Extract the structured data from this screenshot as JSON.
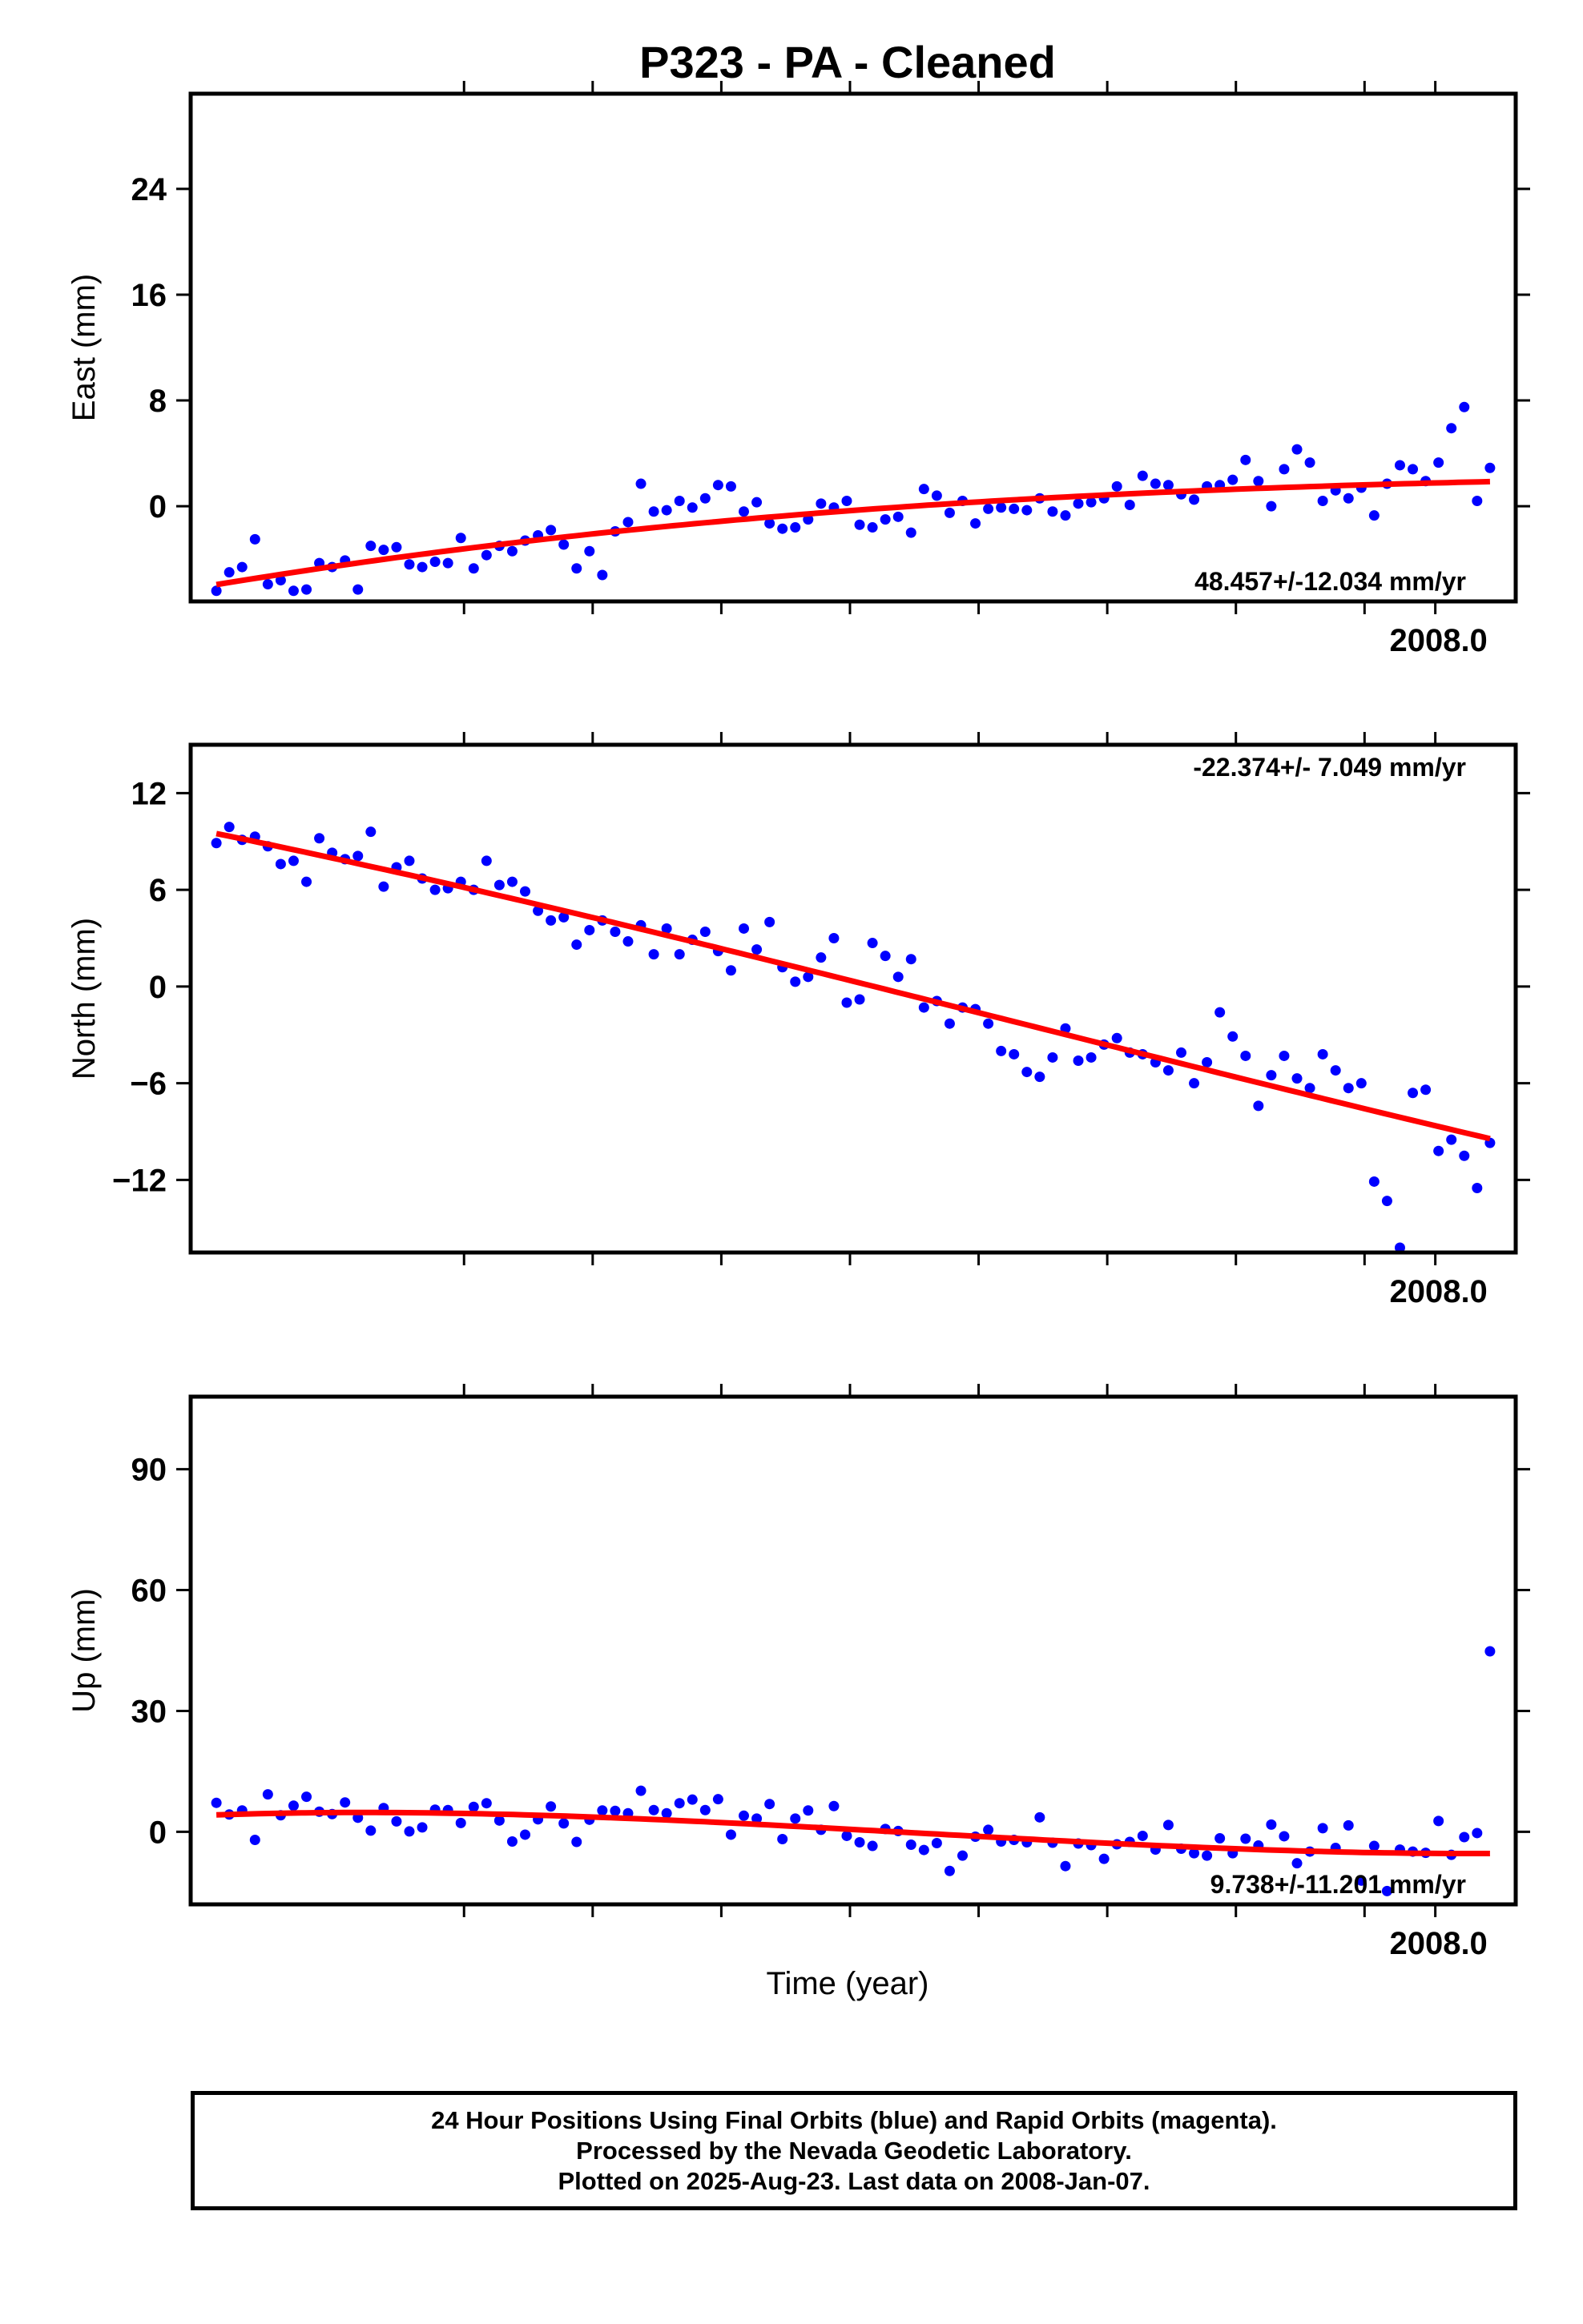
{
  "title": "P323  - PA - Cleaned",
  "xlabel": "Time (year)",
  "footer": [
    "24 Hour Positions Using Final Orbits (blue) and Rapid Orbits (magenta).",
    "Processed by the Nevada Geodetic Laboratory.",
    "Plotted on 2025-Aug-23. Last data on 2008-Jan-07."
  ],
  "colors": {
    "points": "#0000ff",
    "fit": "#ff0000",
    "axes": "#000000"
  },
  "chart_data": [
    {
      "type": "scatter",
      "panel": "east",
      "ylabel": "East (mm)",
      "rate_label": "48.457+/-12.034 mm/yr",
      "rate_position": "bottom-right",
      "xlim": [
        2004.13,
        2008.25
      ],
      "ylim": [
        -7.2,
        31.2
      ],
      "yticks": [
        0,
        8,
        16,
        24
      ],
      "ytick_labels": [
        "0",
        "8",
        "16",
        "24"
      ],
      "xtick_label": "2008.0",
      "x": [
        2004.21,
        2004.25,
        2004.29,
        2004.33,
        2004.37,
        2004.41,
        2004.45,
        2004.49,
        2004.53,
        2004.57,
        2004.61,
        2004.65,
        2004.69,
        2004.73,
        2004.77,
        2004.81,
        2004.85,
        2004.89,
        2004.93,
        2004.97,
        2005.01,
        2005.05,
        2005.09,
        2005.13,
        2005.17,
        2005.21,
        2005.25,
        2005.29,
        2005.33,
        2005.37,
        2005.41,
        2005.45,
        2005.49,
        2005.53,
        2005.57,
        2005.61,
        2005.65,
        2005.69,
        2005.73,
        2005.77,
        2005.81,
        2005.85,
        2005.89,
        2005.93,
        2005.97,
        2006.01,
        2006.05,
        2006.09,
        2006.13,
        2006.17,
        2006.21,
        2006.25,
        2006.29,
        2006.33,
        2006.37,
        2006.41,
        2006.45,
        2006.49,
        2006.53,
        2006.57,
        2006.61,
        2006.65,
        2006.69,
        2006.73,
        2006.77,
        2006.81,
        2006.85,
        2006.89,
        2006.93,
        2006.97,
        2007.01,
        2007.05,
        2007.09,
        2007.13,
        2007.17,
        2007.21,
        2007.25,
        2007.29,
        2007.33,
        2007.37,
        2007.41,
        2007.45,
        2007.49,
        2007.53,
        2007.57,
        2007.61,
        2007.65,
        2007.69,
        2007.73,
        2007.77,
        2007.81,
        2007.85,
        2007.89,
        2007.93,
        2007.97,
        2008.01,
        2008.05,
        2008.09,
        2008.13,
        2008.17
      ],
      "y": [
        -6.4,
        -5.0,
        -4.6,
        -2.5,
        -5.9,
        -5.6,
        -6.4,
        -6.3,
        -4.3,
        -4.6,
        -4.1,
        -6.3,
        -3.0,
        -3.3,
        -3.1,
        -4.4,
        -4.6,
        -4.2,
        -4.3,
        -2.4,
        -4.7,
        -3.7,
        -3.0,
        -3.4,
        -2.6,
        -2.2,
        -1.8,
        -2.9,
        -4.7,
        -3.4,
        -5.2,
        -1.9,
        -1.2,
        1.7,
        -0.4,
        -0.3,
        0.4,
        -0.1,
        0.6,
        1.6,
        1.5,
        -0.4,
        0.3,
        -1.3,
        -1.7,
        -1.6,
        -1.0,
        0.2,
        -0.1,
        0.4,
        -1.4,
        -1.6,
        -1.0,
        -0.8,
        -2.0,
        1.3,
        0.8,
        -0.5,
        0.4,
        -1.3,
        -0.2,
        -0.1,
        -0.2,
        -0.3,
        0.6,
        -0.4,
        -0.7,
        0.2,
        0.3,
        0.6,
        1.5,
        0.1,
        2.3,
        1.7,
        1.6,
        0.9,
        0.5,
        1.5,
        1.6,
        2.0,
        3.5,
        1.9,
        0.0,
        2.8,
        4.3,
        3.3,
        0.4,
        1.2,
        0.6,
        1.4,
        -0.7,
        1.7,
        3.1,
        2.8,
        1.9,
        3.3,
        5.9,
        7.5,
        0.4,
        2.9
      ]
    },
    {
      "type": "scatter",
      "panel": "north",
      "ylabel": "North (mm)",
      "rate_label": "-22.374+/- 7.049 mm/yr",
      "rate_position": "top-right",
      "xlim": [
        2004.13,
        2008.25
      ],
      "ylim": [
        -16.5,
        15.0
      ],
      "yticks": [
        -12,
        -6,
        0,
        6,
        12
      ],
      "ytick_labels": [
        "−12",
        "−6",
        "0",
        "6",
        "12"
      ],
      "xtick_label": "2008.0",
      "x": [
        2004.21,
        2004.25,
        2004.29,
        2004.33,
        2004.37,
        2004.41,
        2004.45,
        2004.49,
        2004.53,
        2004.57,
        2004.61,
        2004.65,
        2004.69,
        2004.73,
        2004.77,
        2004.81,
        2004.85,
        2004.89,
        2004.93,
        2004.97,
        2005.01,
        2005.05,
        2005.09,
        2005.13,
        2005.17,
        2005.21,
        2005.25,
        2005.29,
        2005.33,
        2005.37,
        2005.41,
        2005.45,
        2005.49,
        2005.53,
        2005.57,
        2005.61,
        2005.65,
        2005.69,
        2005.73,
        2005.77,
        2005.81,
        2005.85,
        2005.89,
        2005.93,
        2005.97,
        2006.01,
        2006.05,
        2006.09,
        2006.13,
        2006.17,
        2006.21,
        2006.25,
        2006.29,
        2006.33,
        2006.37,
        2006.41,
        2006.45,
        2006.49,
        2006.53,
        2006.57,
        2006.61,
        2006.65,
        2006.69,
        2006.73,
        2006.77,
        2006.81,
        2006.85,
        2006.89,
        2006.93,
        2006.97,
        2007.01,
        2007.05,
        2007.09,
        2007.13,
        2007.17,
        2007.21,
        2007.25,
        2007.29,
        2007.33,
        2007.37,
        2007.41,
        2007.45,
        2007.49,
        2007.53,
        2007.57,
        2007.61,
        2007.65,
        2007.69,
        2007.73,
        2007.77,
        2007.81,
        2007.85,
        2007.89,
        2007.93,
        2007.97,
        2008.01,
        2008.05,
        2008.09,
        2008.13,
        2008.17
      ],
      "y": [
        8.9,
        9.9,
        9.1,
        9.3,
        8.7,
        7.6,
        7.8,
        6.5,
        9.2,
        8.3,
        7.9,
        8.1,
        9.6,
        6.2,
        7.4,
        7.8,
        6.7,
        6.0,
        6.1,
        6.5,
        6.0,
        7.8,
        6.3,
        6.5,
        5.9,
        4.7,
        4.1,
        4.3,
        2.6,
        3.5,
        4.1,
        3.4,
        2.8,
        3.8,
        2.0,
        3.6,
        2.0,
        2.9,
        3.4,
        2.2,
        1.0,
        3.6,
        2.3,
        4.0,
        1.2,
        0.3,
        0.6,
        1.8,
        3.0,
        -1.0,
        -0.8,
        2.7,
        1.9,
        0.6,
        1.7,
        -1.3,
        -0.9,
        -2.3,
        -1.3,
        -1.4,
        -2.3,
        -4.0,
        -4.2,
        -5.3,
        -5.6,
        -4.4,
        -2.6,
        -4.6,
        -4.4,
        -3.6,
        -3.2,
        -4.1,
        -4.2,
        -4.7,
        -5.2,
        -4.1,
        -6.0,
        -4.7,
        -1.6,
        -3.1,
        -4.3,
        -7.4,
        -5.5,
        -4.3,
        -5.7,
        -6.3,
        -4.2,
        -5.2,
        -6.3,
        -6.0,
        -12.1,
        -13.3,
        -16.2,
        -6.6,
        -6.4,
        -10.2,
        -9.5,
        -10.5,
        -12.5,
        -9.7
      ]
    },
    {
      "type": "scatter",
      "panel": "up",
      "ylabel": "Up (mm)",
      "rate_label": "9.738+/-11.201 mm/yr",
      "rate_position": "bottom-right",
      "xlim": [
        2004.13,
        2008.25
      ],
      "ylim": [
        -18,
        108
      ],
      "yticks": [
        0,
        30,
        60,
        90
      ],
      "ytick_labels": [
        "0",
        "30",
        "60",
        "90"
      ],
      "xtick_label": "2008.0",
      "x": [
        2004.21,
        2004.25,
        2004.29,
        2004.33,
        2004.37,
        2004.41,
        2004.45,
        2004.49,
        2004.53,
        2004.57,
        2004.61,
        2004.65,
        2004.69,
        2004.73,
        2004.77,
        2004.81,
        2004.85,
        2004.89,
        2004.93,
        2004.97,
        2005.01,
        2005.05,
        2005.09,
        2005.13,
        2005.17,
        2005.21,
        2005.25,
        2005.29,
        2005.33,
        2005.37,
        2005.41,
        2005.45,
        2005.49,
        2005.53,
        2005.57,
        2005.61,
        2005.65,
        2005.69,
        2005.73,
        2005.77,
        2005.81,
        2005.85,
        2005.89,
        2005.93,
        2005.97,
        2006.01,
        2006.05,
        2006.09,
        2006.13,
        2006.17,
        2006.21,
        2006.25,
        2006.29,
        2006.33,
        2006.37,
        2006.41,
        2006.45,
        2006.49,
        2006.53,
        2006.57,
        2006.61,
        2006.65,
        2006.69,
        2006.73,
        2006.77,
        2006.81,
        2006.85,
        2006.89,
        2006.93,
        2006.97,
        2007.01,
        2007.05,
        2007.09,
        2007.13,
        2007.17,
        2007.21,
        2007.25,
        2007.29,
        2007.33,
        2007.37,
        2007.41,
        2007.45,
        2007.49,
        2007.53,
        2007.57,
        2007.61,
        2007.65,
        2007.69,
        2007.73,
        2007.77,
        2007.81,
        2007.85,
        2007.89,
        2007.93,
        2007.97,
        2008.01,
        2008.05,
        2008.09,
        2008.13,
        2008.17
      ],
      "y": [
        7.2,
        4.3,
        5.3,
        -2.0,
        9.3,
        4.1,
        6.5,
        8.7,
        5.0,
        4.4,
        7.3,
        3.5,
        0.3,
        5.9,
        2.6,
        0.1,
        1.1,
        5.5,
        5.4,
        2.2,
        6.2,
        7.1,
        2.8,
        -2.4,
        -0.7,
        3.1,
        6.3,
        2.1,
        -2.5,
        3.0,
        5.3,
        5.2,
        4.6,
        10.2,
        5.4,
        4.6,
        7.1,
        8.0,
        5.4,
        8.1,
        -0.7,
        4.0,
        3.3,
        6.9,
        -1.8,
        3.3,
        5.3,
        0.5,
        6.4,
        -1.0,
        -2.6,
        -3.5,
        0.7,
        0.2,
        -3.2,
        -4.5,
        -2.8,
        -9.7,
        -5.9,
        -1.2,
        0.5,
        -2.4,
        -2.0,
        -2.6,
        3.6,
        -2.7,
        -8.5,
        -2.9,
        -3.3,
        -6.7,
        -3.1,
        -2.5,
        -1.0,
        -4.4,
        1.7,
        -4.2,
        -5.3,
        -5.9,
        -1.6,
        -5.3,
        -1.7,
        -3.4,
        1.8,
        -1.1,
        -7.8,
        -4.9,
        0.9,
        -4.0,
        1.6,
        -12.1,
        -3.5,
        -14.7,
        -4.4,
        -4.9,
        -5.2,
        2.7,
        -5.7,
        -1.3,
        -0.3,
        44.8
      ]
    }
  ]
}
